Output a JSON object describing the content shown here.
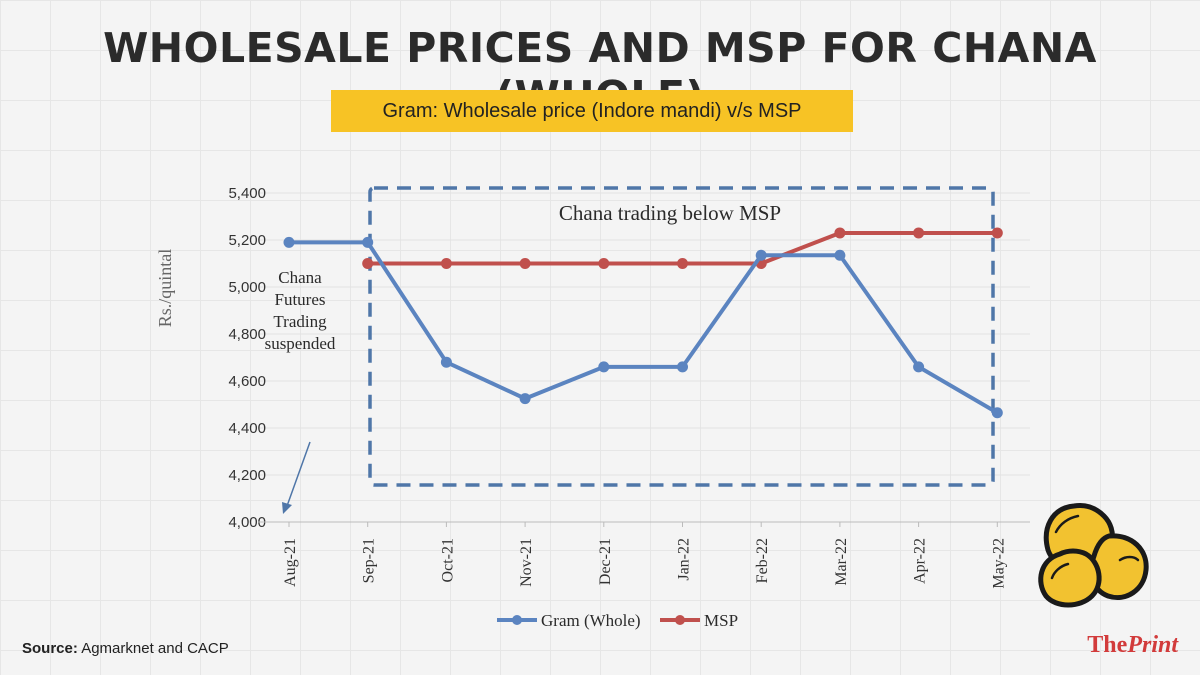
{
  "title": "WHOLESALE PRICES AND MSP FOR CHANA (WHOLE)",
  "subtitle": "Gram: Wholesale price (Indore mandi) v/s MSP",
  "source_label": "Source:",
  "source_text": "Agmarknet and CACP",
  "brand": {
    "the": "The",
    "print": "Print"
  },
  "colors": {
    "gram": "#5b84c0",
    "msp": "#c0504d",
    "highlight": "#f7c325",
    "box": "#4f76a8",
    "text": "#2b2b2b"
  },
  "icon": "chickpea-icon",
  "chart_data": {
    "type": "line",
    "categories": [
      "Aug-21",
      "Sep-21",
      "Oct-21",
      "Nov-21",
      "Dec-21",
      "Jan-22",
      "Feb-22",
      "Mar-22",
      "Apr-22",
      "May-22"
    ],
    "series": [
      {
        "name": "Gram (Whole)",
        "values": [
          5190,
          5190,
          4680,
          4525,
          4660,
          4660,
          5135,
          5135,
          4660,
          4465
        ]
      },
      {
        "name": "MSP",
        "values": [
          null,
          5100,
          5100,
          5100,
          5100,
          5100,
          5100,
          5230,
          5230,
          5230
        ]
      }
    ],
    "ylabel": "Rs./quintal",
    "ylim": [
      4000,
      5400
    ],
    "yticks": [
      4000,
      4200,
      4400,
      4600,
      4800,
      5000,
      5200,
      5400
    ],
    "ytick_labels": [
      "4,000",
      "4,200",
      "4,400",
      "4,600",
      "4,800",
      "5,000",
      "5,200",
      "5,400"
    ],
    "annotations": {
      "box_label": "Chana trading below MSP",
      "suspended": [
        "Chana",
        "Futures",
        "Trading",
        "suspended"
      ]
    },
    "legend_position": "bottom"
  }
}
